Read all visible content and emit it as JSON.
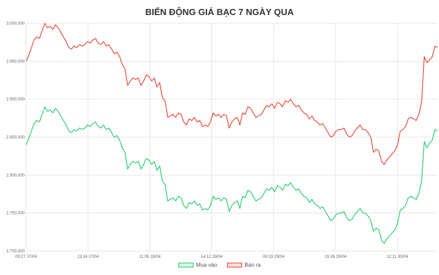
{
  "chart_data": {
    "type": "line",
    "title": "BIẾN ĐỘNG GIÁ BẠC 7 NGÀY QUA",
    "xlabel": "",
    "ylabel": "",
    "ylim": [
      2700000,
      3000000
    ],
    "yticks": [
      "2.700.000",
      "2.750.000",
      "2.800.000",
      "2.850.000",
      "2.900.000",
      "2.950.000",
      "3.000.000"
    ],
    "xticks": [
      "09:27 27/04",
      "13:24 27/04",
      "11:05 28/04",
      "14:12 28/04",
      "09:19 29/04",
      "15:26 29/04",
      "12:11 30/04"
    ],
    "grid": true,
    "legend_position": "bottom",
    "series": [
      {
        "name": "Mua vào",
        "color": "#2ecc71",
        "fill": "#d5f5e3",
        "values": [
          2840000,
          2848000,
          2858000,
          2868000,
          2872000,
          2870000,
          2880000,
          2890000,
          2884000,
          2886000,
          2882000,
          2888000,
          2884000,
          2878000,
          2872000,
          2866000,
          2858000,
          2856000,
          2860000,
          2858000,
          2862000,
          2860000,
          2862000,
          2866000,
          2864000,
          2868000,
          2870000,
          2864000,
          2862000,
          2866000,
          2860000,
          2862000,
          2856000,
          2850000,
          2852000,
          2846000,
          2836000,
          2830000,
          2808000,
          2814000,
          2818000,
          2816000,
          2818000,
          2808000,
          2814000,
          2822000,
          2820000,
          2814000,
          2818000,
          2806000,
          2812000,
          2792000,
          2788000,
          2766000,
          2768000,
          2770000,
          2766000,
          2772000,
          2770000,
          2760000,
          2756000,
          2764000,
          2762000,
          2766000,
          2760000,
          2762000,
          2754000,
          2756000,
          2754000,
          2760000,
          2772000,
          2768000,
          2770000,
          2766000,
          2770000,
          2768000,
          2752000,
          2760000,
          2764000,
          2766000,
          2756000,
          2772000,
          2770000,
          2780000,
          2778000,
          2772000,
          2766000,
          2768000,
          2770000,
          2776000,
          2782000,
          2780000,
          2784000,
          2778000,
          2786000,
          2784000,
          2780000,
          2788000,
          2786000,
          2790000,
          2784000,
          2780000,
          2782000,
          2776000,
          2772000,
          2770000,
          2764000,
          2768000,
          2762000,
          2760000,
          2756000,
          2758000,
          2752000,
          2746000,
          2740000,
          2742000,
          2748000,
          2750000,
          2750000,
          2752000,
          2744000,
          2740000,
          2742000,
          2748000,
          2752000,
          2756000,
          2750000,
          2750000,
          2746000,
          2740000,
          2726000,
          2730000,
          2728000,
          2714000,
          2710000,
          2716000,
          2720000,
          2724000,
          2728000,
          2736000,
          2754000,
          2756000,
          2760000,
          2770000,
          2772000,
          2770000,
          2768000,
          2776000,
          2792000,
          2844000,
          2836000,
          2842000,
          2846000,
          2860000,
          2858000
        ]
      },
      {
        "name": "Bán ra",
        "color": "#e74c3c",
        "fill": "#fadbd8",
        "values": [
          2950000,
          2958000,
          2968000,
          2978000,
          2982000,
          2980000,
          2990000,
          3000000,
          2994000,
          2996000,
          2992000,
          2998000,
          2994000,
          2988000,
          2982000,
          2976000,
          2968000,
          2966000,
          2970000,
          2968000,
          2972000,
          2970000,
          2972000,
          2976000,
          2974000,
          2978000,
          2980000,
          2974000,
          2972000,
          2976000,
          2970000,
          2972000,
          2966000,
          2960000,
          2962000,
          2956000,
          2946000,
          2940000,
          2918000,
          2924000,
          2928000,
          2926000,
          2928000,
          2918000,
          2924000,
          2932000,
          2930000,
          2924000,
          2928000,
          2916000,
          2922000,
          2902000,
          2898000,
          2876000,
          2878000,
          2880000,
          2876000,
          2882000,
          2880000,
          2870000,
          2866000,
          2874000,
          2872000,
          2876000,
          2870000,
          2872000,
          2864000,
          2866000,
          2864000,
          2870000,
          2882000,
          2878000,
          2880000,
          2876000,
          2880000,
          2878000,
          2862000,
          2870000,
          2874000,
          2876000,
          2866000,
          2882000,
          2880000,
          2890000,
          2888000,
          2882000,
          2876000,
          2878000,
          2880000,
          2886000,
          2892000,
          2890000,
          2894000,
          2888000,
          2896000,
          2894000,
          2890000,
          2898000,
          2896000,
          2900000,
          2894000,
          2890000,
          2892000,
          2886000,
          2882000,
          2880000,
          2874000,
          2878000,
          2872000,
          2870000,
          2866000,
          2868000,
          2862000,
          2856000,
          2850000,
          2852000,
          2858000,
          2860000,
          2860000,
          2862000,
          2854000,
          2850000,
          2852000,
          2858000,
          2862000,
          2866000,
          2860000,
          2860000,
          2856000,
          2850000,
          2830000,
          2834000,
          2832000,
          2818000,
          2814000,
          2820000,
          2824000,
          2828000,
          2832000,
          2840000,
          2858000,
          2860000,
          2864000,
          2874000,
          2876000,
          2874000,
          2872000,
          2880000,
          2896000,
          2956000,
          2948000,
          2952000,
          2956000,
          2970000,
          2968000
        ]
      }
    ]
  }
}
